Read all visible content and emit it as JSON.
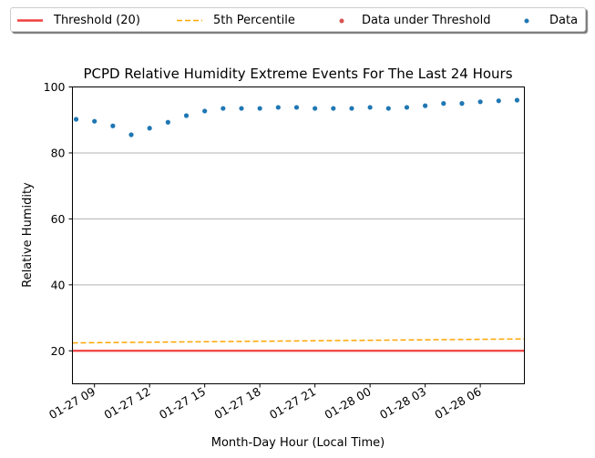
{
  "chart_data": {
    "type": "scatter",
    "title": "PCPD Relative Humidity Extreme Events For The Last 24 Hours",
    "xlabel": "Month-Day Hour (Local Time)",
    "ylabel": "Relative Humidity",
    "ylim": [
      10,
      100
    ],
    "y_ticks": [
      20,
      40,
      60,
      80,
      100
    ],
    "x_ticks": [
      "01-27 09",
      "01-27 12",
      "01-27 15",
      "01-27 18",
      "01-27 21",
      "01-28 00",
      "01-28 03",
      "01-28 06"
    ],
    "grid": "horizontal",
    "legend_position": "top",
    "series": [
      {
        "name": "Threshold (20)",
        "kind": "line",
        "color": "#ef3f3f",
        "x": [
          "2025-01-27 07:48",
          "2025-01-28 08:24"
        ],
        "y": [
          20,
          20
        ]
      },
      {
        "name": "5th Percentile",
        "kind": "dashed-line",
        "color": "#ffa500",
        "x": [
          "2025-01-27 07:48",
          "2025-01-28 08:24"
        ],
        "y": [
          22.4,
          23.6
        ]
      },
      {
        "name": "Data under Threshold",
        "kind": "scatter",
        "color": "#d9534f",
        "x": [],
        "y": []
      },
      {
        "name": "Data",
        "kind": "scatter",
        "color": "#1f77b4",
        "x": [
          "2025-01-27 08:00",
          "2025-01-27 09:00",
          "2025-01-27 10:00",
          "2025-01-27 11:00",
          "2025-01-27 12:00",
          "2025-01-27 13:00",
          "2025-01-27 14:00",
          "2025-01-27 15:00",
          "2025-01-27 16:00",
          "2025-01-27 17:00",
          "2025-01-27 18:00",
          "2025-01-27 19:00",
          "2025-01-27 20:00",
          "2025-01-27 21:00",
          "2025-01-27 22:00",
          "2025-01-27 23:00",
          "2025-01-28 00:00",
          "2025-01-28 01:00",
          "2025-01-28 02:00",
          "2025-01-28 03:00",
          "2025-01-28 04:00",
          "2025-01-28 05:00",
          "2025-01-28 06:00",
          "2025-01-28 07:00",
          "2025-01-28 08:00"
        ],
        "y": [
          90.2,
          89.6,
          88.2,
          85.5,
          87.5,
          89.3,
          91.3,
          92.7,
          93.5,
          93.5,
          93.5,
          93.8,
          93.8,
          93.5,
          93.5,
          93.5,
          93.8,
          93.5,
          93.8,
          94.3,
          95.0,
          95.0,
          95.5,
          95.8,
          96.0
        ]
      }
    ]
  }
}
